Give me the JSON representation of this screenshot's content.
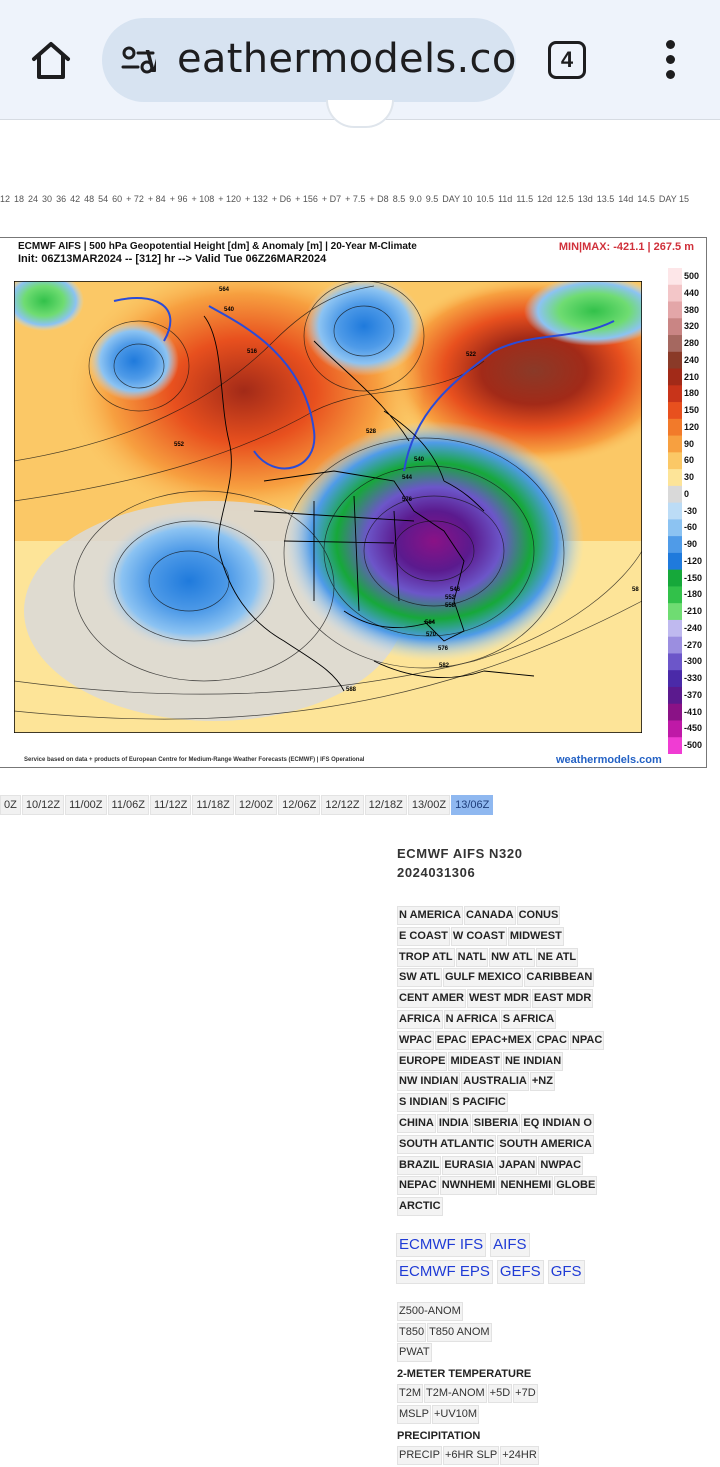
{
  "browser": {
    "url": "weathermodels.com",
    "tab_count": "4"
  },
  "forecast_hours": [
    "12",
    "18",
    "24",
    "30",
    "36",
    "42",
    "48",
    "54",
    "60",
    "+ 72",
    "+ 84",
    "+ 96",
    "+ 108",
    "+ 120",
    "+ 132",
    "+ D6",
    "+ 156",
    "+ D7",
    "+ 7.5",
    "+ D8",
    "8.5",
    "9.0",
    "9.5",
    "DAY 10",
    "10.5",
    "11d",
    "11.5",
    "12d",
    "12.5",
    "13d",
    "13.5",
    "14d",
    "14.5",
    "DAY 15"
  ],
  "map": {
    "title_line1": "ECMWF AIFS | 500 hPa Geopotential Height [dm] & Anomaly [m] | 20-Year M-Climate",
    "title_line2": "Init: 06Z13MAR2024 -- [312] hr --> Valid Tue 06Z26MAR2024",
    "minmax": "MIN|MAX: -421.1 | 267.5 m",
    "credit": "Service based on data + products of European Centre for Medium-Range Weather Forecasts (ECMWF) | IFS Operational",
    "logo": "weathermodels.com",
    "colorbar_labels": [
      "500",
      "440",
      "380",
      "320",
      "280",
      "240",
      "210",
      "180",
      "150",
      "120",
      "90",
      "60",
      "30",
      "0",
      "-30",
      "-60",
      "-90",
      "-120",
      "-150",
      "-180",
      "-210",
      "-240",
      "-270",
      "-300",
      "-330",
      "-370",
      "-410",
      "-450",
      "-500"
    ],
    "colorbar_colors": [
      "#fde6e8",
      "#f3c6c8",
      "#e3a6a8",
      "#c98584",
      "#a56860",
      "#8a3a28",
      "#a22a18",
      "#c8341a",
      "#e8501e",
      "#f27a2a",
      "#f7a040",
      "#fbc866",
      "#fde498",
      "#d9d9d9",
      "#bcdcf6",
      "#8cc3f2",
      "#4f9be8",
      "#1f7adc",
      "#16a83a",
      "#32c14a",
      "#6fdc72",
      "#bfb9ef",
      "#9b8ee0",
      "#6c56c9",
      "#4a2aa8",
      "#5b1a8e",
      "#8a1286",
      "#bf19a7",
      "#f03cd3"
    ],
    "contour_labels": [
      "564",
      "540",
      "516",
      "552",
      "528",
      "540",
      "544",
      "576",
      "546",
      "552",
      "558",
      "564",
      "570",
      "576",
      "582",
      "588",
      "522",
      "58"
    ]
  },
  "init_times": [
    "0Z",
    "10/12Z",
    "11/00Z",
    "11/06Z",
    "11/12Z",
    "11/18Z",
    "12/00Z",
    "12/06Z",
    "12/12Z",
    "12/18Z",
    "13/00Z",
    "13/06Z"
  ],
  "active_init": "13/06Z",
  "model": {
    "name": "ECMWF AIFS N320",
    "run": "2024031306"
  },
  "regions": [
    [
      "N AMERICA",
      "CANADA",
      "CONUS"
    ],
    [
      "E COAST",
      "W COAST",
      "MIDWEST"
    ],
    [
      "TROP ATL",
      "NATL",
      "NW ATL",
      "NE ATL"
    ],
    [
      "SW ATL",
      "GULF MEXICO",
      "CARIBBEAN"
    ],
    [
      "CENT AMER",
      "WEST MDR",
      "EAST MDR"
    ],
    [
      "AFRICA",
      "N AFRICA",
      "S AFRICA"
    ],
    [
      "WPAC",
      "EPAC",
      "EPAC+MEX",
      "CPAC",
      "NPAC"
    ],
    [
      "EUROPE",
      "MIDEAST",
      "NE INDIAN"
    ],
    [
      "NW INDIAN",
      "AUSTRALIA",
      "+NZ"
    ],
    [
      "S INDIAN",
      "S PACIFIC"
    ],
    [
      "CHINA",
      "INDIA",
      "SIBERIA",
      "EQ INDIAN O"
    ],
    [
      "SOUTH ATLANTIC",
      "SOUTH AMERICA"
    ],
    [
      "BRAZIL",
      "EURASIA",
      "JAPAN",
      "NWPAC"
    ],
    [
      "NEPAC",
      "NWNHEMI",
      "NENHEMI",
      "GLOBE"
    ],
    [
      "ARCTIC"
    ]
  ],
  "model_links": [
    [
      "ECMWF IFS",
      "AIFS"
    ],
    [
      "ECMWF EPS",
      "GEFS",
      "GFS"
    ]
  ],
  "params": {
    "group1": [
      [
        "Z500-ANOM"
      ],
      [
        "T850",
        "T850 ANOM"
      ],
      [
        "PWAT"
      ]
    ],
    "head_temp": "2-METER TEMPERATURE",
    "group2": [
      [
        "T2M",
        "T2M-ANOM",
        "+5D",
        "+7D"
      ],
      [
        "MSLP",
        "+UV10M"
      ]
    ],
    "head_precip": "PRECIPITATION",
    "group3": [
      [
        "PRECIP",
        "+6HR SLP",
        "+24HR"
      ]
    ]
  }
}
